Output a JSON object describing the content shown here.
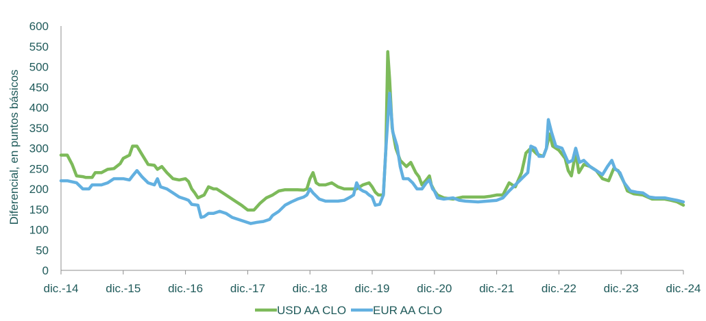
{
  "chart_data": {
    "type": "line",
    "title": "",
    "xlabel": "",
    "ylabel": "Diferencial, en puntos básicos",
    "ylim": [
      0,
      600
    ],
    "yticks": [
      0,
      50,
      100,
      150,
      200,
      250,
      300,
      350,
      400,
      450,
      500,
      550,
      600
    ],
    "xlim": [
      0,
      10
    ],
    "xticks": [
      {
        "label": "dic.-14",
        "x": 0
      },
      {
        "label": "dic.-15",
        "x": 1
      },
      {
        "label": "dic.-16",
        "x": 2
      },
      {
        "label": "dic.-17",
        "x": 3
      },
      {
        "label": "dic.-18",
        "x": 4
      },
      {
        "label": "dic.-19",
        "x": 5
      },
      {
        "label": "dic.-20",
        "x": 6
      },
      {
        "label": "dic.-21",
        "x": 7
      },
      {
        "label": "dic.-22",
        "x": 8
      },
      {
        "label": "dic.-23",
        "x": 9
      },
      {
        "label": "dic.-24",
        "x": 10
      }
    ],
    "legend_position": "bottom",
    "series": [
      {
        "name": "USD AA CLO",
        "color": "#7dba5a",
        "points": [
          [
            0,
            283
          ],
          [
            0.1,
            283
          ],
          [
            0.18,
            260
          ],
          [
            0.25,
            232
          ],
          [
            0.35,
            230
          ],
          [
            0.4,
            228
          ],
          [
            0.5,
            228
          ],
          [
            0.55,
            240
          ],
          [
            0.65,
            240
          ],
          [
            0.75,
            248
          ],
          [
            0.85,
            250
          ],
          [
            0.95,
            262
          ],
          [
            1.0,
            275
          ],
          [
            1.1,
            283
          ],
          [
            1.15,
            305
          ],
          [
            1.22,
            305
          ],
          [
            1.3,
            285
          ],
          [
            1.4,
            260
          ],
          [
            1.5,
            258
          ],
          [
            1.55,
            248
          ],
          [
            1.62,
            255
          ],
          [
            1.7,
            240
          ],
          [
            1.8,
            225
          ],
          [
            1.9,
            222
          ],
          [
            2.0,
            225
          ],
          [
            2.05,
            218
          ],
          [
            2.1,
            200
          ],
          [
            2.15,
            190
          ],
          [
            2.2,
            178
          ],
          [
            2.3,
            185
          ],
          [
            2.37,
            205
          ],
          [
            2.45,
            200
          ],
          [
            2.5,
            200
          ],
          [
            2.6,
            190
          ],
          [
            2.7,
            180
          ],
          [
            2.8,
            170
          ],
          [
            2.9,
            160
          ],
          [
            3.0,
            148
          ],
          [
            3.1,
            148
          ],
          [
            3.2,
            165
          ],
          [
            3.3,
            178
          ],
          [
            3.4,
            185
          ],
          [
            3.5,
            195
          ],
          [
            3.6,
            198
          ],
          [
            3.7,
            198
          ],
          [
            3.8,
            198
          ],
          [
            3.9,
            197
          ],
          [
            3.95,
            200
          ],
          [
            4.0,
            225
          ],
          [
            4.05,
            240
          ],
          [
            4.1,
            215
          ],
          [
            4.15,
            210
          ],
          [
            4.25,
            210
          ],
          [
            4.35,
            215
          ],
          [
            4.45,
            205
          ],
          [
            4.55,
            200
          ],
          [
            4.65,
            200
          ],
          [
            4.75,
            200
          ],
          [
            4.85,
            210
          ],
          [
            4.95,
            215
          ],
          [
            5.0,
            205
          ],
          [
            5.05,
            192
          ],
          [
            5.1,
            185
          ],
          [
            5.18,
            185
          ],
          [
            5.22,
            300
          ],
          [
            5.25,
            537
          ],
          [
            5.28,
            470
          ],
          [
            5.32,
            350
          ],
          [
            5.38,
            300
          ],
          [
            5.45,
            270
          ],
          [
            5.55,
            255
          ],
          [
            5.62,
            265
          ],
          [
            5.7,
            240
          ],
          [
            5.75,
            230
          ],
          [
            5.8,
            210
          ],
          [
            5.87,
            222
          ],
          [
            5.92,
            232
          ],
          [
            5.95,
            210
          ],
          [
            6.0,
            195
          ],
          [
            6.05,
            185
          ],
          [
            6.15,
            178
          ],
          [
            6.3,
            175
          ],
          [
            6.45,
            180
          ],
          [
            6.6,
            180
          ],
          [
            6.8,
            180
          ],
          [
            6.9,
            182
          ],
          [
            7.0,
            185
          ],
          [
            7.1,
            185
          ],
          [
            7.2,
            215
          ],
          [
            7.3,
            205
          ],
          [
            7.4,
            240
          ],
          [
            7.47,
            288
          ],
          [
            7.55,
            300
          ],
          [
            7.65,
            285
          ],
          [
            7.75,
            280
          ],
          [
            7.8,
            300
          ],
          [
            7.85,
            335
          ],
          [
            7.9,
            305
          ],
          [
            8.0,
            295
          ],
          [
            8.1,
            275
          ],
          [
            8.15,
            245
          ],
          [
            8.2,
            232
          ],
          [
            8.27,
            290
          ],
          [
            8.32,
            240
          ],
          [
            8.4,
            260
          ],
          [
            8.5,
            255
          ],
          [
            8.6,
            245
          ],
          [
            8.7,
            225
          ],
          [
            8.8,
            220
          ],
          [
            8.88,
            250
          ],
          [
            8.95,
            245
          ],
          [
            9.0,
            230
          ],
          [
            9.05,
            215
          ],
          [
            9.1,
            195
          ],
          [
            9.2,
            188
          ],
          [
            9.35,
            185
          ],
          [
            9.5,
            175
          ],
          [
            9.6,
            175
          ],
          [
            9.7,
            175
          ],
          [
            9.8,
            172
          ],
          [
            9.9,
            168
          ],
          [
            10.0,
            160
          ]
        ]
      },
      {
        "name": "EUR AA CLO",
        "color": "#62b0e0",
        "points": [
          [
            0,
            220
          ],
          [
            0.1,
            220
          ],
          [
            0.25,
            215
          ],
          [
            0.35,
            200
          ],
          [
            0.45,
            200
          ],
          [
            0.5,
            210
          ],
          [
            0.65,
            210
          ],
          [
            0.75,
            215
          ],
          [
            0.85,
            225
          ],
          [
            1.0,
            225
          ],
          [
            1.1,
            222
          ],
          [
            1.15,
            232
          ],
          [
            1.22,
            245
          ],
          [
            1.3,
            230
          ],
          [
            1.4,
            215
          ],
          [
            1.5,
            210
          ],
          [
            1.55,
            225
          ],
          [
            1.6,
            205
          ],
          [
            1.7,
            200
          ],
          [
            1.8,
            190
          ],
          [
            1.9,
            180
          ],
          [
            2.0,
            175
          ],
          [
            2.05,
            172
          ],
          [
            2.1,
            162
          ],
          [
            2.2,
            160
          ],
          [
            2.25,
            130
          ],
          [
            2.3,
            132
          ],
          [
            2.37,
            140
          ],
          [
            2.45,
            140
          ],
          [
            2.55,
            145
          ],
          [
            2.65,
            140
          ],
          [
            2.75,
            130
          ],
          [
            2.85,
            125
          ],
          [
            2.95,
            120
          ],
          [
            3.05,
            115
          ],
          [
            3.15,
            118
          ],
          [
            3.25,
            120
          ],
          [
            3.35,
            125
          ],
          [
            3.4,
            135
          ],
          [
            3.5,
            145
          ],
          [
            3.6,
            160
          ],
          [
            3.7,
            168
          ],
          [
            3.8,
            175
          ],
          [
            3.9,
            180
          ],
          [
            3.95,
            185
          ],
          [
            4.0,
            200
          ],
          [
            4.05,
            190
          ],
          [
            4.15,
            175
          ],
          [
            4.25,
            170
          ],
          [
            4.35,
            170
          ],
          [
            4.45,
            170
          ],
          [
            4.55,
            172
          ],
          [
            4.65,
            180
          ],
          [
            4.7,
            185
          ],
          [
            4.75,
            215
          ],
          [
            4.8,
            200
          ],
          [
            4.85,
            195
          ],
          [
            4.9,
            192
          ],
          [
            4.95,
            185
          ],
          [
            5.0,
            180
          ],
          [
            5.05,
            160
          ],
          [
            5.12,
            162
          ],
          [
            5.18,
            185
          ],
          [
            5.22,
            300
          ],
          [
            5.28,
            435
          ],
          [
            5.33,
            340
          ],
          [
            5.4,
            305
          ],
          [
            5.45,
            255
          ],
          [
            5.5,
            225
          ],
          [
            5.58,
            225
          ],
          [
            5.65,
            215
          ],
          [
            5.72,
            200
          ],
          [
            5.8,
            200
          ],
          [
            5.87,
            215
          ],
          [
            5.92,
            222
          ],
          [
            5.97,
            200
          ],
          [
            6.0,
            195
          ],
          [
            6.05,
            178
          ],
          [
            6.15,
            175
          ],
          [
            6.3,
            178
          ],
          [
            6.4,
            172
          ],
          [
            6.5,
            170
          ],
          [
            6.7,
            168
          ],
          [
            6.85,
            170
          ],
          [
            7.0,
            172
          ],
          [
            7.1,
            178
          ],
          [
            7.2,
            195
          ],
          [
            7.3,
            210
          ],
          [
            7.4,
            225
          ],
          [
            7.5,
            240
          ],
          [
            7.55,
            305
          ],
          [
            7.62,
            300
          ],
          [
            7.68,
            280
          ],
          [
            7.75,
            280
          ],
          [
            7.8,
            300
          ],
          [
            7.83,
            370
          ],
          [
            7.88,
            340
          ],
          [
            7.95,
            305
          ],
          [
            8.05,
            300
          ],
          [
            8.15,
            265
          ],
          [
            8.22,
            270
          ],
          [
            8.27,
            300
          ],
          [
            8.33,
            265
          ],
          [
            8.4,
            270
          ],
          [
            8.5,
            255
          ],
          [
            8.6,
            245
          ],
          [
            8.7,
            235
          ],
          [
            8.78,
            255
          ],
          [
            8.85,
            270
          ],
          [
            8.9,
            250
          ],
          [
            8.98,
            240
          ],
          [
            9.05,
            215
          ],
          [
            9.15,
            195
          ],
          [
            9.25,
            192
          ],
          [
            9.35,
            190
          ],
          [
            9.45,
            180
          ],
          [
            9.55,
            178
          ],
          [
            9.7,
            178
          ],
          [
            9.8,
            175
          ],
          [
            9.9,
            172
          ],
          [
            10.0,
            168
          ]
        ]
      }
    ]
  }
}
